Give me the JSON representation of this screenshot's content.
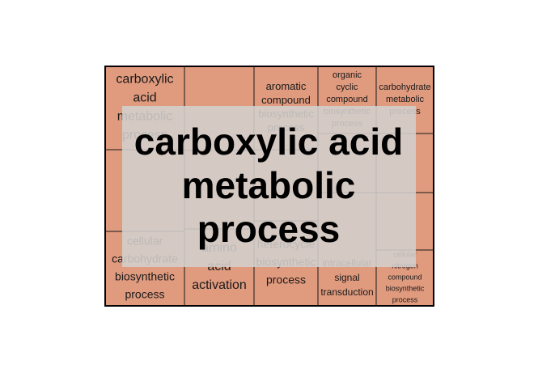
{
  "colors": {
    "tile_fill": "#e09a7e",
    "tile_border": "#1a1a1a",
    "frame_border": "#000000",
    "overlay_fill": "#d3cfcd",
    "overlay_text": "#000000"
  },
  "chart_data": {
    "type": "treemap",
    "group_label": [
      "carboxylic acid",
      "metabolic",
      "process"
    ],
    "tiles": [
      {
        "label": [
          "carboxylic",
          "acid",
          "metabolic",
          "process"
        ]
      },
      {
        "label": []
      },
      {
        "label": [
          "aromatic",
          "compound",
          "biosynthetic",
          "process"
        ]
      },
      {
        "label": [
          "organic",
          "cyclic",
          "compound",
          "biosynthetic",
          "process"
        ]
      },
      {
        "label": [
          "carbohydrate",
          "metabolic",
          "process"
        ]
      },
      {
        "label": []
      },
      {
        "label": []
      },
      {
        "label": []
      },
      {
        "label": []
      },
      {
        "label": []
      },
      {
        "label": []
      },
      {
        "label": [
          "cellular",
          "carbohydrate",
          "biosynthetic",
          "process"
        ]
      },
      {
        "label": [
          "amino",
          "acid",
          "activation"
        ]
      },
      {
        "label": [
          "heterocycle",
          "biosynthetic",
          "process"
        ]
      },
      {
        "label": [
          "intracellular",
          "signal",
          "transduction"
        ]
      },
      {
        "label": [
          "cellular",
          "nitrogen",
          "compound",
          "biosynthetic",
          "process"
        ]
      }
    ]
  }
}
